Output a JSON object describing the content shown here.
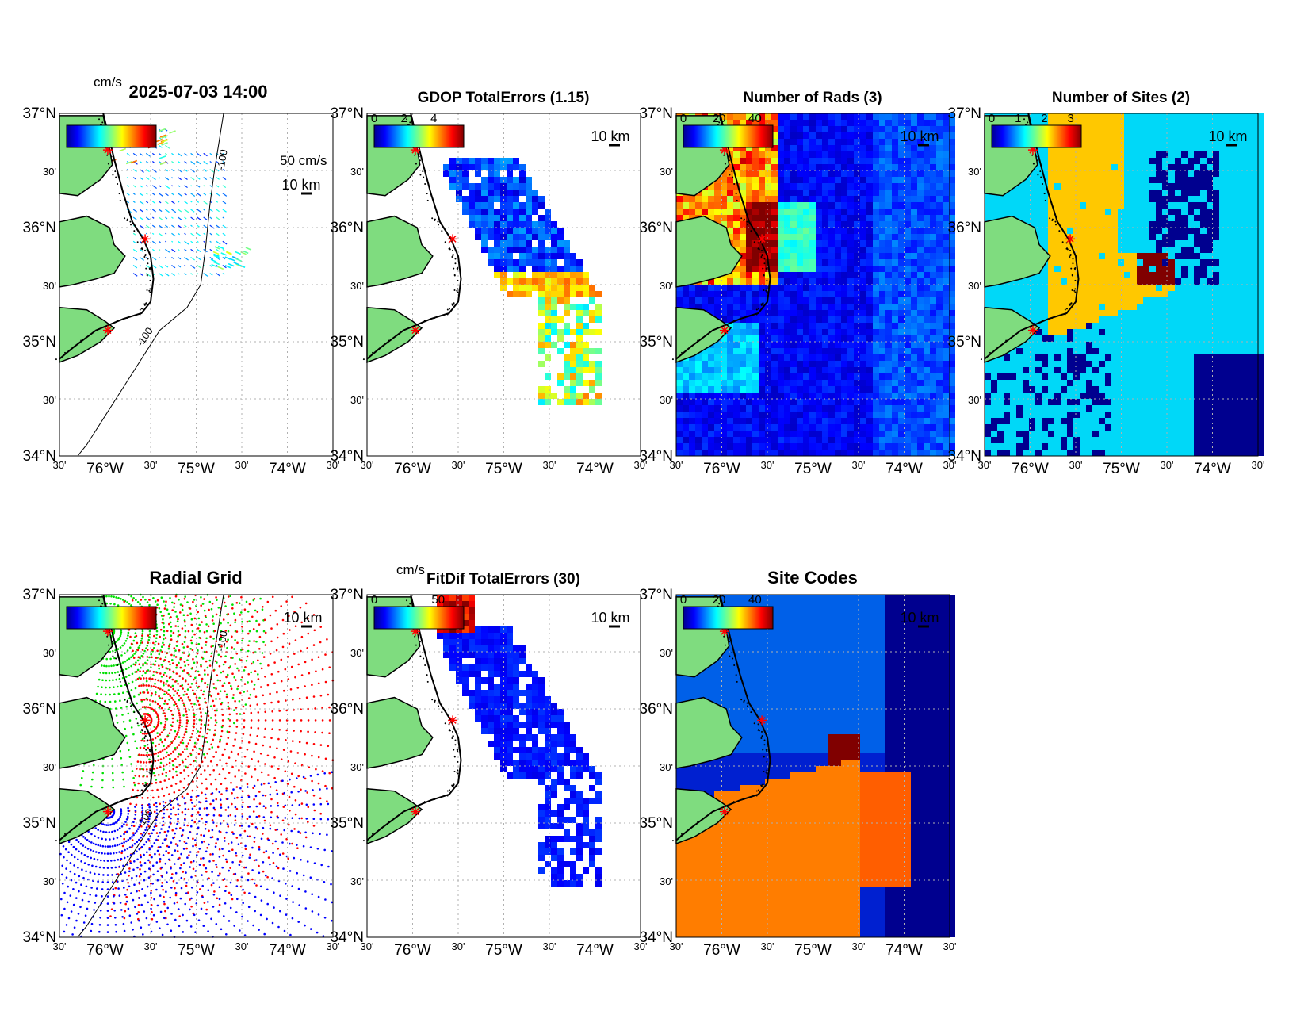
{
  "figure": {
    "timestamp": "2025-07-03 14:00",
    "units_label": "cm/s",
    "scale_vector_label": "50 cm/s",
    "scale_bar_label": "10 km"
  },
  "axes_labels": {
    "lat": [
      "37°N",
      "30'",
      "36°N",
      "30'",
      "35°N",
      "30'",
      "34°N"
    ],
    "lon": [
      "30'",
      "76°W",
      "30'",
      "75°W",
      "30'",
      "74°W",
      "30'"
    ]
  },
  "colors": {
    "land": "#7fdc7f",
    "coast": "#000000",
    "site_marker": "#ff0000",
    "grid": "#b0b0b0",
    "jet": [
      "#00008f",
      "#0000ff",
      "#0080ff",
      "#00ffff",
      "#80ff80",
      "#ffff00",
      "#ff8000",
      "#ff0000",
      "#800000"
    ]
  },
  "sites": [
    {
      "lat": 36.68,
      "lon": -75.97
    },
    {
      "lat": 35.9,
      "lon": -75.56
    },
    {
      "lat": 35.1,
      "lon": -75.97
    }
  ],
  "panels": [
    {
      "id": "totals",
      "title": "",
      "colorbar_ticks": [],
      "overlay": "vectors",
      "show_timestamp": true,
      "show_units": true,
      "show_scale_vector": true,
      "contour_label": "-100"
    },
    {
      "id": "gdop",
      "title": "GDOP TotalErrors (1.15)",
      "colorbar_ticks": [
        "0",
        "2",
        "4"
      ],
      "overlay": "gdop",
      "contour_label": "1.15"
    },
    {
      "id": "rads",
      "title": "Number of Rads (3)",
      "colorbar_ticks": [
        "0",
        "20",
        "40"
      ],
      "overlay": "rads",
      "contour_label": "3"
    },
    {
      "id": "sites",
      "title": "Number of Sites (2)",
      "colorbar_ticks": [
        "0",
        "1",
        "2",
        "3"
      ],
      "overlay": "sitecount",
      "contour_label": "2"
    },
    {
      "id": "radial",
      "title": "Radial Grid",
      "colorbar_ticks": [],
      "overlay": "radialgrid",
      "contour_label": "-100"
    },
    {
      "id": "fitdif",
      "title": "FitDif TotalErrors (30)",
      "colorbar_ticks": [
        "0",
        "50"
      ],
      "overlay": "fitdif",
      "show_units": true,
      "contour_label": "30"
    },
    {
      "id": "sitecodes",
      "title": "Site Codes",
      "colorbar_ticks": [
        "0",
        "20",
        "40"
      ],
      "overlay": "sitecodes",
      "contour_label": ""
    }
  ]
}
